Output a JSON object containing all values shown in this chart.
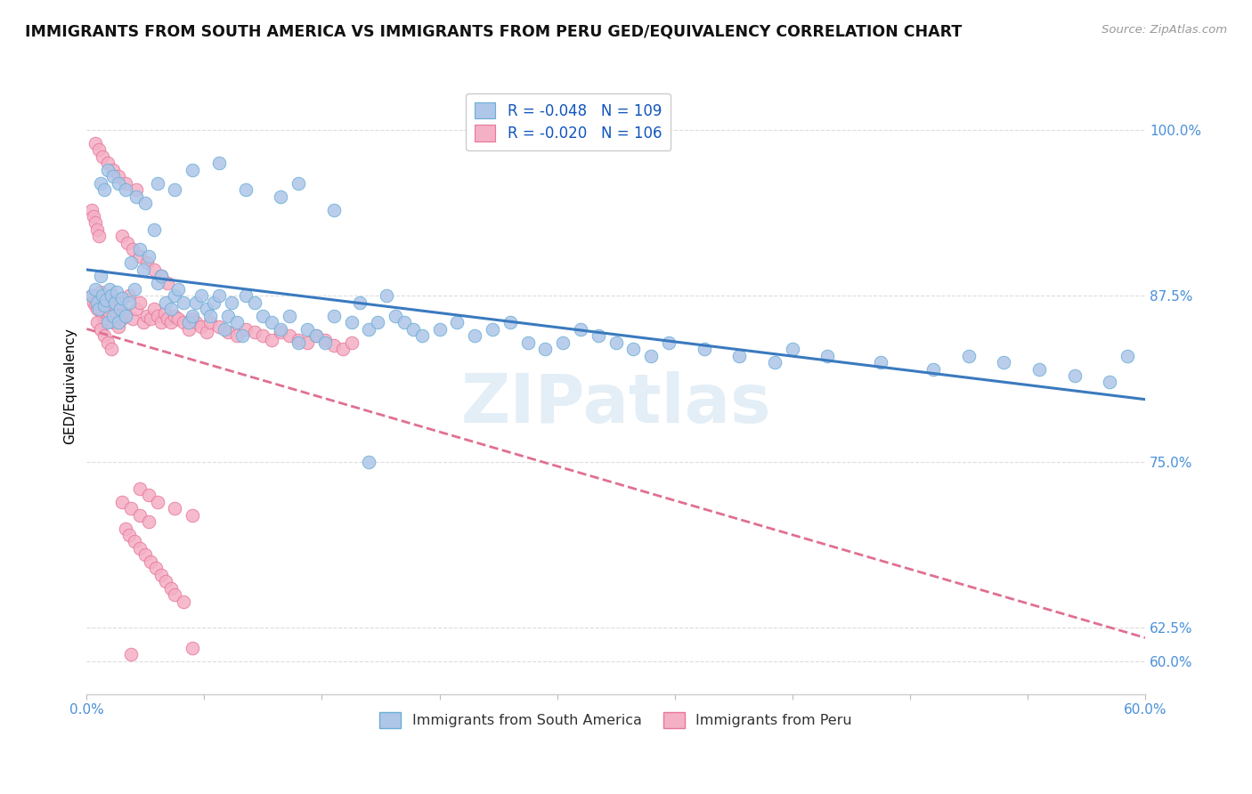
{
  "title": "IMMIGRANTS FROM SOUTH AMERICA VS IMMIGRANTS FROM PERU GED/EQUIVALENCY CORRELATION CHART",
  "source": "Source: ZipAtlas.com",
  "ylabel": "GED/Equivalency",
  "ytick_values": [
    0.6,
    0.625,
    0.75,
    0.875,
    1.0
  ],
  "xmin": 0.0,
  "xmax": 0.6,
  "ymin": 0.575,
  "ymax": 1.04,
  "series1_color": "#aec6e8",
  "series1_edge": "#6aaed6",
  "series2_color": "#f4b0c5",
  "series2_edge": "#e8769a",
  "legend_R1": "R = -0.048",
  "legend_N1": "N = 109",
  "legend_R2": "R = -0.020",
  "legend_N2": "N = 106",
  "trend1_color": "#3a7abf",
  "trend2_color": "#e07090",
  "watermark": "ZIPatlas",
  "title_fontsize": 12.5,
  "marker_size": 110,
  "blue_points_x": [
    0.003,
    0.005,
    0.006,
    0.007,
    0.008,
    0.009,
    0.01,
    0.011,
    0.012,
    0.013,
    0.014,
    0.015,
    0.016,
    0.017,
    0.018,
    0.019,
    0.02,
    0.022,
    0.024,
    0.025,
    0.027,
    0.03,
    0.032,
    0.035,
    0.038,
    0.04,
    0.042,
    0.045,
    0.048,
    0.05,
    0.052,
    0.055,
    0.058,
    0.06,
    0.062,
    0.065,
    0.068,
    0.07,
    0.072,
    0.075,
    0.078,
    0.08,
    0.082,
    0.085,
    0.088,
    0.09,
    0.095,
    0.1,
    0.105,
    0.11,
    0.115,
    0.12,
    0.125,
    0.13,
    0.135,
    0.14,
    0.15,
    0.155,
    0.16,
    0.165,
    0.17,
    0.175,
    0.18,
    0.185,
    0.19,
    0.2,
    0.21,
    0.22,
    0.23,
    0.24,
    0.25,
    0.26,
    0.27,
    0.28,
    0.29,
    0.3,
    0.31,
    0.32,
    0.33,
    0.35,
    0.37,
    0.39,
    0.4,
    0.42,
    0.45,
    0.48,
    0.5,
    0.52,
    0.54,
    0.56,
    0.58,
    0.59,
    0.008,
    0.01,
    0.012,
    0.015,
    0.018,
    0.022,
    0.028,
    0.033,
    0.04,
    0.05,
    0.06,
    0.075,
    0.09,
    0.11,
    0.12,
    0.14,
    0.16
  ],
  "blue_points_y": [
    0.875,
    0.88,
    0.87,
    0.865,
    0.89,
    0.875,
    0.868,
    0.872,
    0.855,
    0.88,
    0.875,
    0.86,
    0.87,
    0.878,
    0.855,
    0.865,
    0.873,
    0.86,
    0.87,
    0.9,
    0.88,
    0.91,
    0.895,
    0.905,
    0.925,
    0.885,
    0.89,
    0.87,
    0.865,
    0.875,
    0.88,
    0.87,
    0.855,
    0.86,
    0.87,
    0.875,
    0.865,
    0.86,
    0.87,
    0.875,
    0.85,
    0.86,
    0.87,
    0.855,
    0.845,
    0.875,
    0.87,
    0.86,
    0.855,
    0.85,
    0.86,
    0.84,
    0.85,
    0.845,
    0.84,
    0.86,
    0.855,
    0.87,
    0.85,
    0.855,
    0.875,
    0.86,
    0.855,
    0.85,
    0.845,
    0.85,
    0.855,
    0.845,
    0.85,
    0.855,
    0.84,
    0.835,
    0.84,
    0.85,
    0.845,
    0.84,
    0.835,
    0.83,
    0.84,
    0.835,
    0.83,
    0.825,
    0.835,
    0.83,
    0.825,
    0.82,
    0.83,
    0.825,
    0.82,
    0.815,
    0.81,
    0.83,
    0.96,
    0.955,
    0.97,
    0.965,
    0.96,
    0.955,
    0.95,
    0.945,
    0.96,
    0.955,
    0.97,
    0.975,
    0.955,
    0.95,
    0.96,
    0.94,
    0.75
  ],
  "pink_points_x": [
    0.003,
    0.004,
    0.005,
    0.006,
    0.007,
    0.008,
    0.009,
    0.01,
    0.011,
    0.012,
    0.013,
    0.014,
    0.015,
    0.016,
    0.017,
    0.018,
    0.019,
    0.02,
    0.022,
    0.024,
    0.026,
    0.028,
    0.03,
    0.032,
    0.034,
    0.036,
    0.038,
    0.04,
    0.042,
    0.044,
    0.046,
    0.048,
    0.05,
    0.052,
    0.055,
    0.058,
    0.06,
    0.062,
    0.065,
    0.068,
    0.07,
    0.075,
    0.08,
    0.085,
    0.09,
    0.095,
    0.1,
    0.105,
    0.11,
    0.115,
    0.12,
    0.125,
    0.13,
    0.135,
    0.14,
    0.145,
    0.15,
    0.005,
    0.007,
    0.009,
    0.012,
    0.015,
    0.018,
    0.022,
    0.028,
    0.003,
    0.004,
    0.005,
    0.006,
    0.007,
    0.02,
    0.023,
    0.026,
    0.03,
    0.034,
    0.038,
    0.042,
    0.046,
    0.006,
    0.008,
    0.01,
    0.012,
    0.014,
    0.03,
    0.035,
    0.04,
    0.05,
    0.06,
    0.02,
    0.025,
    0.03,
    0.035,
    0.022,
    0.024,
    0.027,
    0.03,
    0.033,
    0.036,
    0.039,
    0.042,
    0.045,
    0.048,
    0.05,
    0.055,
    0.06,
    0.025
  ],
  "pink_points_y": [
    0.875,
    0.87,
    0.868,
    0.865,
    0.872,
    0.878,
    0.86,
    0.855,
    0.87,
    0.858,
    0.862,
    0.875,
    0.855,
    0.868,
    0.86,
    0.852,
    0.87,
    0.858,
    0.862,
    0.875,
    0.858,
    0.865,
    0.87,
    0.855,
    0.86,
    0.858,
    0.865,
    0.86,
    0.855,
    0.862,
    0.858,
    0.855,
    0.86,
    0.858,
    0.855,
    0.85,
    0.858,
    0.855,
    0.852,
    0.848,
    0.855,
    0.852,
    0.848,
    0.845,
    0.85,
    0.848,
    0.845,
    0.842,
    0.848,
    0.845,
    0.842,
    0.84,
    0.845,
    0.842,
    0.838,
    0.835,
    0.84,
    0.99,
    0.985,
    0.98,
    0.975,
    0.97,
    0.965,
    0.96,
    0.955,
    0.94,
    0.935,
    0.93,
    0.925,
    0.92,
    0.92,
    0.915,
    0.91,
    0.905,
    0.9,
    0.895,
    0.89,
    0.885,
    0.855,
    0.85,
    0.845,
    0.84,
    0.835,
    0.73,
    0.725,
    0.72,
    0.715,
    0.71,
    0.72,
    0.715,
    0.71,
    0.705,
    0.7,
    0.695,
    0.69,
    0.685,
    0.68,
    0.675,
    0.67,
    0.665,
    0.66,
    0.655,
    0.65,
    0.645,
    0.61,
    0.605
  ]
}
